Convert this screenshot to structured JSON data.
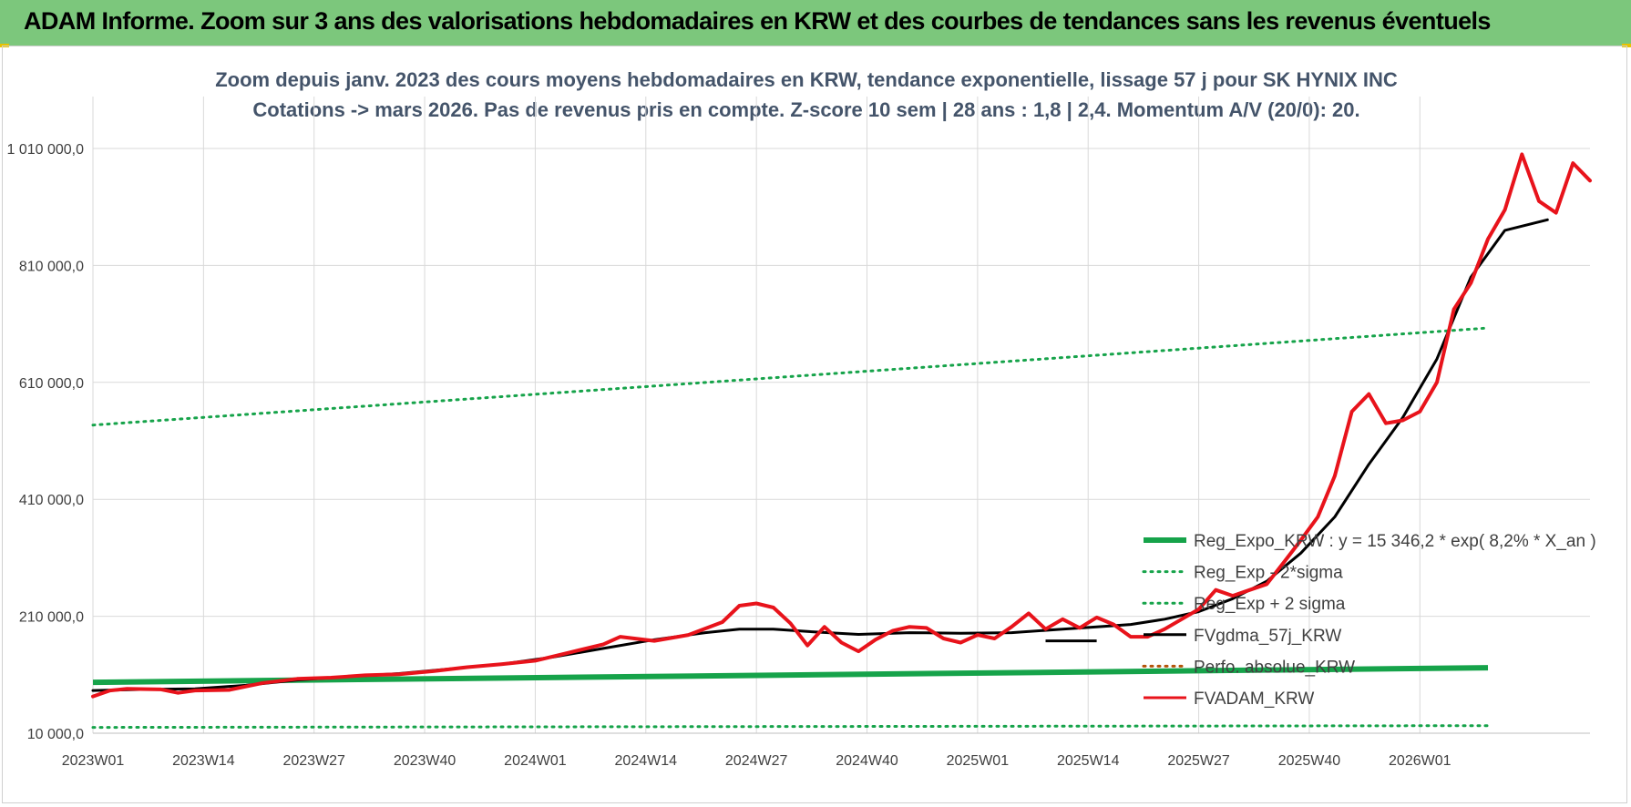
{
  "header": {
    "title": "ADAM Informe. Zoom sur 3 ans des valorisations hebdomadaires en KRW et des courbes de tendances sans les revenus éventuels"
  },
  "colors": {
    "banner": "#7cc77c",
    "regression": "#16a34a",
    "sigma": "#16a34a",
    "smoothed": "#000000",
    "price": "#e8131b",
    "grid": "#d9d9d9"
  },
  "chart_data": {
    "type": "line",
    "title_lines": [
      "Zoom depuis janv. 2023 des cours moyens hebdomadaires en KRW, tendance exponentielle, lissage 57 j pour SK HYNIX INC",
      "Cotations -> mars 2026. Pas de revenus pris en compte. Z-score 10 sem | 28 ans : 1,8 | 2,4. Momentum A/V (20/0): 20."
    ],
    "x_ticks": [
      "2023W01",
      "2023W14",
      "2023W27",
      "2023W40",
      "2024W01",
      "2024W14",
      "2024W27",
      "2024W40",
      "2025W01",
      "2025W14",
      "2025W27",
      "2025W40",
      "2026W01"
    ],
    "y_ticks": [
      "10 000,0",
      "210 000,0",
      "410 000,0",
      "610 000,0",
      "810 000,0",
      "1 010 000,0"
    ],
    "ylim": [
      10000,
      1010000
    ],
    "x_weeks": 165,
    "legend": [
      {
        "name": "Reg_Expo_KRW : y = 15 346,2 * exp( 8,2% *  X_an )",
        "style": "thick",
        "color": "#16a34a"
      },
      {
        "name": "Reg_Exp - 2*sigma",
        "style": "dotted",
        "color": "#16a34a"
      },
      {
        "name": "Reg_Exp + 2 sigma",
        "style": "dotted",
        "color": "#16a34a"
      },
      {
        "name": "FVgdma_57j_KRW",
        "style": "solid",
        "color": "#000000"
      },
      {
        "name": "Perfo. absolue_KRW",
        "style": "dotted",
        "color": "#b45309"
      },
      {
        "name": "FVADAM_KRW",
        "style": "solid",
        "color": "#e8131b"
      }
    ],
    "series": [
      {
        "name": "Reg_Expo_KRW",
        "points": [
          [
            0,
            97000
          ],
          [
            164,
            122000
          ]
        ]
      },
      {
        "name": "Reg_Exp - 2*sigma",
        "points": [
          [
            0,
            20000
          ],
          [
            164,
            23000
          ]
        ]
      },
      {
        "name": "Reg_Exp + 2 sigma",
        "points": [
          [
            0,
            537000
          ],
          [
            164,
            703000
          ]
        ]
      },
      {
        "name": "FVgdma_57j_KRW",
        "points": [
          [
            0,
            83000
          ],
          [
            6,
            85000
          ],
          [
            12,
            86000
          ],
          [
            18,
            92000
          ],
          [
            24,
            101000
          ],
          [
            30,
            107000
          ],
          [
            36,
            112000
          ],
          [
            42,
            120000
          ],
          [
            48,
            128000
          ],
          [
            54,
            140000
          ],
          [
            60,
            155000
          ],
          [
            66,
            170000
          ],
          [
            72,
            182000
          ],
          [
            76,
            188000
          ],
          [
            80,
            188000
          ],
          [
            84,
            184000
          ],
          [
            90,
            179000
          ],
          [
            96,
            182000
          ],
          [
            102,
            181000
          ],
          [
            108,
            182000
          ],
          [
            114,
            188000
          ],
          [
            118,
            192000
          ],
          [
            122,
            196000
          ],
          [
            126,
            205000
          ],
          [
            130,
            218000
          ],
          [
            134,
            240000
          ],
          [
            138,
            270000
          ],
          [
            142,
            318000
          ],
          [
            146,
            380000
          ],
          [
            150,
            470000
          ],
          [
            154,
            550000
          ],
          [
            158,
            650000
          ],
          [
            162,
            790000
          ],
          [
            166,
            870000
          ],
          [
            171,
            888000
          ]
        ]
      },
      {
        "name": "FVgdma_57j_KRW_legend_stub",
        "points": [
          [
            112,
            168000
          ],
          [
            118,
            168000
          ]
        ]
      },
      {
        "name": "FVADAM_KRW",
        "points": [
          [
            0,
            73000
          ],
          [
            2,
            83000
          ],
          [
            4,
            86000
          ],
          [
            8,
            85000
          ],
          [
            10,
            79000
          ],
          [
            12,
            83000
          ],
          [
            16,
            84000
          ],
          [
            20,
            96000
          ],
          [
            24,
            103000
          ],
          [
            28,
            105000
          ],
          [
            32,
            109000
          ],
          [
            36,
            111000
          ],
          [
            40,
            116000
          ],
          [
            44,
            123000
          ],
          [
            48,
            128000
          ],
          [
            52,
            134000
          ],
          [
            56,
            148000
          ],
          [
            60,
            162000
          ],
          [
            62,
            175000
          ],
          [
            66,
            168000
          ],
          [
            70,
            178000
          ],
          [
            74,
            200000
          ],
          [
            76,
            228000
          ],
          [
            78,
            232000
          ],
          [
            80,
            225000
          ],
          [
            82,
            198000
          ],
          [
            84,
            160000
          ],
          [
            86,
            192000
          ],
          [
            88,
            165000
          ],
          [
            90,
            150000
          ],
          [
            92,
            170000
          ],
          [
            94,
            185000
          ],
          [
            96,
            192000
          ],
          [
            98,
            190000
          ],
          [
            100,
            172000
          ],
          [
            102,
            165000
          ],
          [
            104,
            178000
          ],
          [
            106,
            172000
          ],
          [
            108,
            192000
          ],
          [
            110,
            215000
          ],
          [
            112,
            188000
          ],
          [
            114,
            205000
          ],
          [
            116,
            190000
          ],
          [
            118,
            208000
          ],
          [
            120,
            196000
          ],
          [
            122,
            175000
          ],
          [
            124,
            175000
          ],
          [
            126,
            188000
          ],
          [
            128,
            205000
          ],
          [
            130,
            222000
          ],
          [
            132,
            255000
          ],
          [
            134,
            245000
          ],
          [
            136,
            255000
          ],
          [
            138,
            265000
          ],
          [
            140,
            302000
          ],
          [
            142,
            340000
          ],
          [
            144,
            380000
          ],
          [
            146,
            450000
          ],
          [
            148,
            560000
          ],
          [
            150,
            590000
          ],
          [
            152,
            540000
          ],
          [
            154,
            545000
          ],
          [
            156,
            560000
          ],
          [
            158,
            610000
          ],
          [
            160,
            735000
          ],
          [
            162,
            780000
          ],
          [
            164,
            855000
          ],
          [
            166,
            905000
          ],
          [
            168,
            1000000
          ],
          [
            170,
            920000
          ],
          [
            172,
            900000
          ],
          [
            174,
            985000
          ],
          [
            176,
            955000
          ]
        ]
      }
    ]
  }
}
